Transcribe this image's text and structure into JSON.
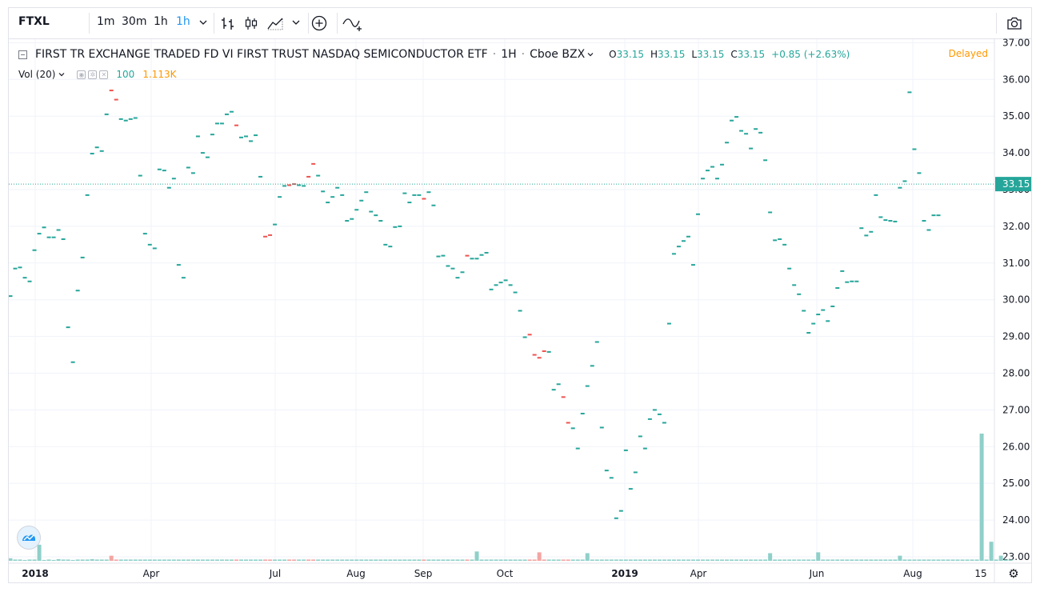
{
  "toolbar": {
    "symbol": "FTXL",
    "intervals": [
      "1m",
      "30m",
      "1h"
    ],
    "selected_interval": "1h",
    "icons": [
      "bars-icon",
      "candles-icon",
      "area-icon",
      "chevron-down-icon",
      "plus-circle-icon",
      "indicator-icon",
      "camera-icon"
    ]
  },
  "legend": {
    "title": "FIRST TR EXCHANGE TRADED FD VI FIRST TRUST NASDAQ SEMICONDUCTOR ETF",
    "sep": "·",
    "interval": "1H",
    "exchange": "Cboe BZX",
    "o_label": "O",
    "o_value": "33.15",
    "h_label": "H",
    "h_value": "33.15",
    "l_label": "L",
    "l_value": "33.15",
    "c_label": "C",
    "c_value": "33.15",
    "change": "+0.85 (+2.63%)",
    "delayed": "Delayed",
    "vol_label": "Vol (20)",
    "vol_value": "100",
    "vol_ma": "1.113K"
  },
  "colors": {
    "up": "#26a69a",
    "down": "#ef5350",
    "grid": "#f0f3fa",
    "axis_text": "#131722",
    "price_line": "#26a69a",
    "delayed": "#ff9800",
    "vol_ma": "#ff9800"
  },
  "chart_data": {
    "type": "bar",
    "style": "hourly OHLC dashes",
    "y_axis": {
      "min": 22.8,
      "max": 37.2,
      "ticks": [
        "23.00",
        "24.00",
        "25.00",
        "26.00",
        "27.00",
        "28.00",
        "29.00",
        "30.00",
        "31.00",
        "32.00",
        "33.00",
        "34.00",
        "35.00",
        "36.00",
        "37.00"
      ],
      "side": "right"
    },
    "last_price": {
      "value": 33.15,
      "label": "33.15"
    },
    "x_axis": {
      "labels": [
        "2018",
        "Apr",
        "Jul",
        "Aug",
        "Sep",
        "Oct",
        "2019",
        "Apr",
        "Jun",
        "Aug",
        "15"
      ],
      "bold": [
        "2018",
        "2019"
      ]
    },
    "series": [
      {
        "values": [
          30.1,
          30.85,
          30.88,
          30.6,
          30.5,
          31.35,
          31.8,
          31.97,
          31.7,
          31.7,
          31.9,
          31.65,
          29.25,
          28.3,
          30.25,
          31.15,
          32.85,
          33.98,
          34.15,
          34.05,
          35.05,
          35.7,
          35.45,
          34.92,
          34.88,
          34.92,
          34.95,
          33.38,
          31.8,
          31.5,
          31.4,
          33.55,
          33.52,
          33.05,
          33.3,
          30.95,
          30.6,
          33.6,
          33.45,
          34.45,
          34.0,
          33.88,
          34.5,
          34.8,
          34.8,
          35.05,
          35.12,
          34.75,
          34.42,
          34.45,
          34.32,
          34.48,
          33.35,
          31.72,
          31.76,
          32.05,
          32.8,
          33.1,
          33.12,
          33.15,
          33.12,
          33.1,
          33.35,
          33.7,
          33.38,
          32.95,
          32.65,
          32.8,
          33.05,
          32.85,
          32.15,
          32.2,
          32.45,
          32.7,
          32.93,
          32.4,
          32.3,
          32.15,
          31.5,
          31.45,
          31.98,
          32.0,
          32.9,
          32.65,
          32.85,
          32.85,
          32.75,
          32.93,
          32.57,
          31.18,
          31.2,
          30.92,
          30.85,
          30.6,
          30.75,
          31.2,
          31.12,
          31.12,
          31.22,
          31.28,
          30.28,
          30.4,
          30.47,
          30.53,
          30.4,
          30.2,
          29.7,
          28.98,
          29.05,
          28.5,
          28.42,
          28.6,
          28.58,
          27.55,
          27.7,
          27.35,
          26.65,
          26.5,
          25.95,
          26.9,
          27.65,
          28.2,
          28.85,
          26.52,
          25.35,
          25.15,
          24.05,
          24.25,
          25.9,
          24.85,
          25.3,
          26.28,
          25.95,
          26.75,
          27.0,
          26.88,
          26.65,
          29.35,
          31.25,
          31.45,
          31.6,
          31.72,
          30.95,
          32.33,
          33.3,
          33.52,
          33.62,
          33.3,
          33.68,
          34.28,
          34.88,
          34.98,
          34.6,
          34.52,
          34.12,
          34.65,
          34.55,
          33.8,
          32.38,
          31.62,
          31.65,
          31.5,
          30.85,
          30.4,
          30.15,
          29.7,
          29.1,
          29.35,
          29.6,
          29.72,
          29.42,
          29.82,
          30.32,
          30.78,
          30.48,
          30.5,
          30.5,
          31.95,
          31.75,
          31.85,
          32.85,
          32.25,
          32.17,
          32.15,
          32.13,
          33.05,
          33.23,
          35.65,
          34.1,
          33.45,
          32.15,
          31.9,
          32.3,
          32.3
        ],
        "directions": "uuuuuuuuuuuuuuuuuuuuudduuuuuuuuuuuuuuuuuuuuuuuuduuuuudduuudduudduuuuuuuuuuuuuuuuuuuuuuduuuuuuuuduuuuuuuuuuuudddduuudduuuuuuuuuuuuuuuuuuuuuuuuuuuuuuuuuuuuuuuuuuuuuuuuuuuuuuuuuuuuuuuuuuuuuuuuuuuuuuuuuuuuuuuuu"
      },
      {
        "name": "Vol (20)",
        "values": [
          0.6,
          0.3,
          0.3,
          0.2,
          0.3,
          0.3,
          0.3,
          0.2,
          0.3,
          0.2,
          0.4,
          0.3,
          0.3,
          0.2,
          0.3,
          0.3,
          0.3,
          0.4,
          0.3,
          0.3,
          0.3,
          0.2,
          0.3,
          0.3,
          0.3,
          0.3,
          0.3,
          0.3,
          0.3,
          0.3,
          0.3,
          0.3,
          0.3,
          0.3,
          0.3,
          0.3,
          0.3,
          0.3,
          0.3,
          0.3,
          0.3,
          0.3,
          0.3,
          0.3,
          0.3,
          0.3,
          0.3,
          0.3,
          0.3,
          0.3,
          0.3,
          0.3,
          0.3,
          0.3,
          0.3,
          0.3,
          0.3,
          0.3,
          0.3,
          0.3,
          0.3,
          0.3,
          0.3,
          0.3,
          0.3,
          0.3,
          0.3,
          0.3,
          0.3,
          0.3,
          0.3,
          0.3,
          0.3,
          0.3,
          0.3,
          0.3,
          0.3,
          0.3,
          0.3,
          0.3,
          0.3,
          0.3,
          0.3,
          0.3,
          0.3,
          0.3,
          0.3,
          0.3,
          0.3,
          0.3,
          0.3,
          0.3,
          0.3,
          0.3,
          0.3,
          0.3,
          0.3,
          0.3,
          0.3,
          0.3,
          0.3,
          0.3,
          0.3,
          0.3,
          0.3,
          0.3,
          0.3,
          0.3,
          0.3,
          0.3,
          0.3,
          0.3,
          0.3,
          0.3,
          0.3,
          0.3,
          0.3,
          0.3,
          0.3,
          0.3,
          0.3,
          0.3,
          0.3,
          0.3,
          0.3,
          0.3,
          0.3,
          0.3,
          0.3,
          0.3,
          0.3,
          0.3,
          0.3,
          0.3,
          0.3,
          0.3,
          0.3,
          0.3,
          0.3,
          0.3,
          0.3,
          0.3,
          0.3,
          0.3,
          0.3,
          0.3,
          0.3,
          0.3,
          0.3,
          0.3,
          0.3,
          0.3,
          0.3,
          0.3,
          0.3,
          0.3,
          0.3,
          0.3,
          0.3,
          0.3,
          0.3,
          0.3,
          0.3,
          0.3,
          0.3,
          0.3,
          0.3,
          0.3,
          0.3,
          0.3,
          0.3,
          0.3,
          0.3,
          0.3,
          0.3,
          0.3,
          0.3,
          0.3,
          0.3,
          0.3,
          0.3,
          0.3,
          0.3,
          0.3,
          0.3,
          0.3,
          0.3,
          0.3,
          0.3,
          0.3,
          0.3,
          0.3,
          0.3,
          0.3,
          0.3,
          0.3,
          0.3,
          0.3,
          0.3,
          0.3,
          0.3,
          0.3,
          0.3,
          0.3,
          0.3,
          0.3,
          0.3,
          0.3,
          0.3
        ],
        "highlights": [
          [
            6,
            3.8
          ],
          [
            21,
            1.2
          ],
          [
            97,
            2.2
          ],
          [
            110,
            2.0
          ],
          [
            120,
            1.8
          ],
          [
            158,
            1.8
          ],
          [
            168,
            2.0
          ],
          [
            185,
            1.2
          ],
          [
            202,
            30.0
          ],
          [
            204,
            4.5
          ],
          [
            206,
            1.2
          ]
        ]
      }
    ]
  }
}
